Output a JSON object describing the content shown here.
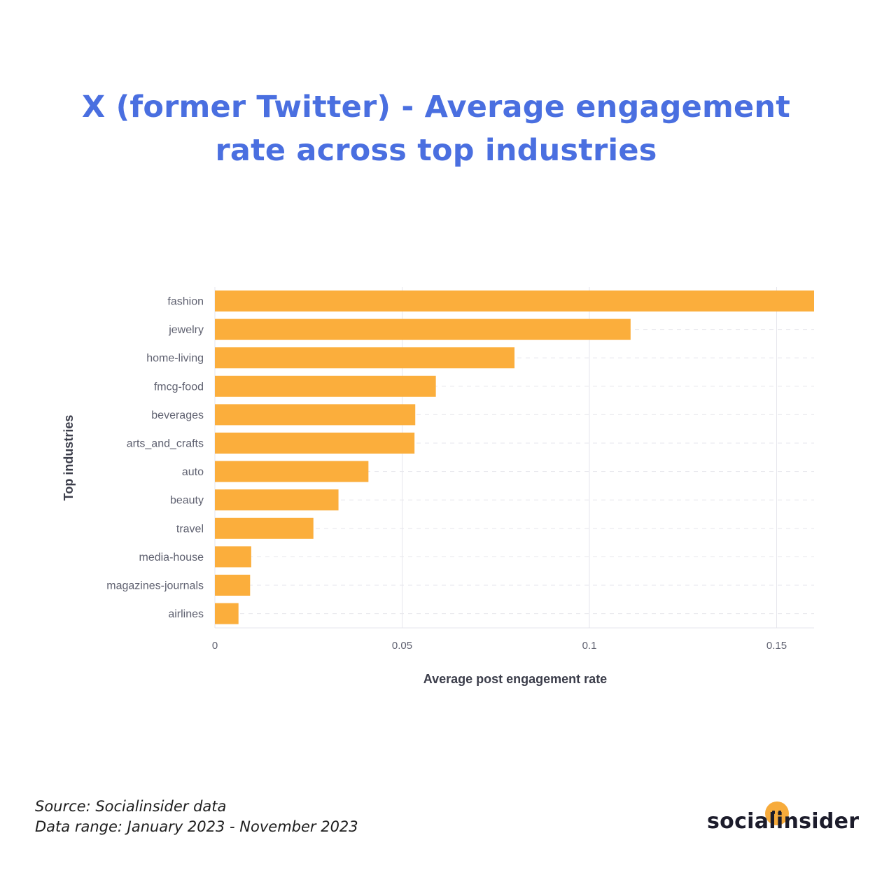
{
  "title": "X (former Twitter) - Average engagement rate across top industries",
  "footer": {
    "source": "Source: Socialinsider data",
    "range": "Data range: January 2023 - November 2023"
  },
  "logo": {
    "text": "socialinsider",
    "accent_color": "#f7ab3b"
  },
  "colors": {
    "title": "#4a6fe0",
    "bar": "#fbae3c",
    "grid": "#e6e6ec",
    "tick_text": "#5f6170",
    "axis_title": "#3b3d4a"
  },
  "chart_data": {
    "type": "bar",
    "orientation": "horizontal",
    "categories": [
      "fashion",
      "jewelry",
      "home-living",
      "fmcg-food",
      "beverages",
      "arts_and_crafts",
      "auto",
      "beauty",
      "travel",
      "media-house",
      "magazines-journals",
      "airlines"
    ],
    "values": [
      0.16,
      0.111,
      0.08,
      0.059,
      0.0535,
      0.0533,
      0.041,
      0.033,
      0.0263,
      0.0097,
      0.0094,
      0.0063
    ],
    "xlabel": "Average post engagement rate",
    "ylabel": "Top industries",
    "xticks": [
      "0",
      "0.05",
      "0.1",
      "0.15"
    ],
    "xlim": [
      0,
      0.16
    ],
    "grid": true
  }
}
